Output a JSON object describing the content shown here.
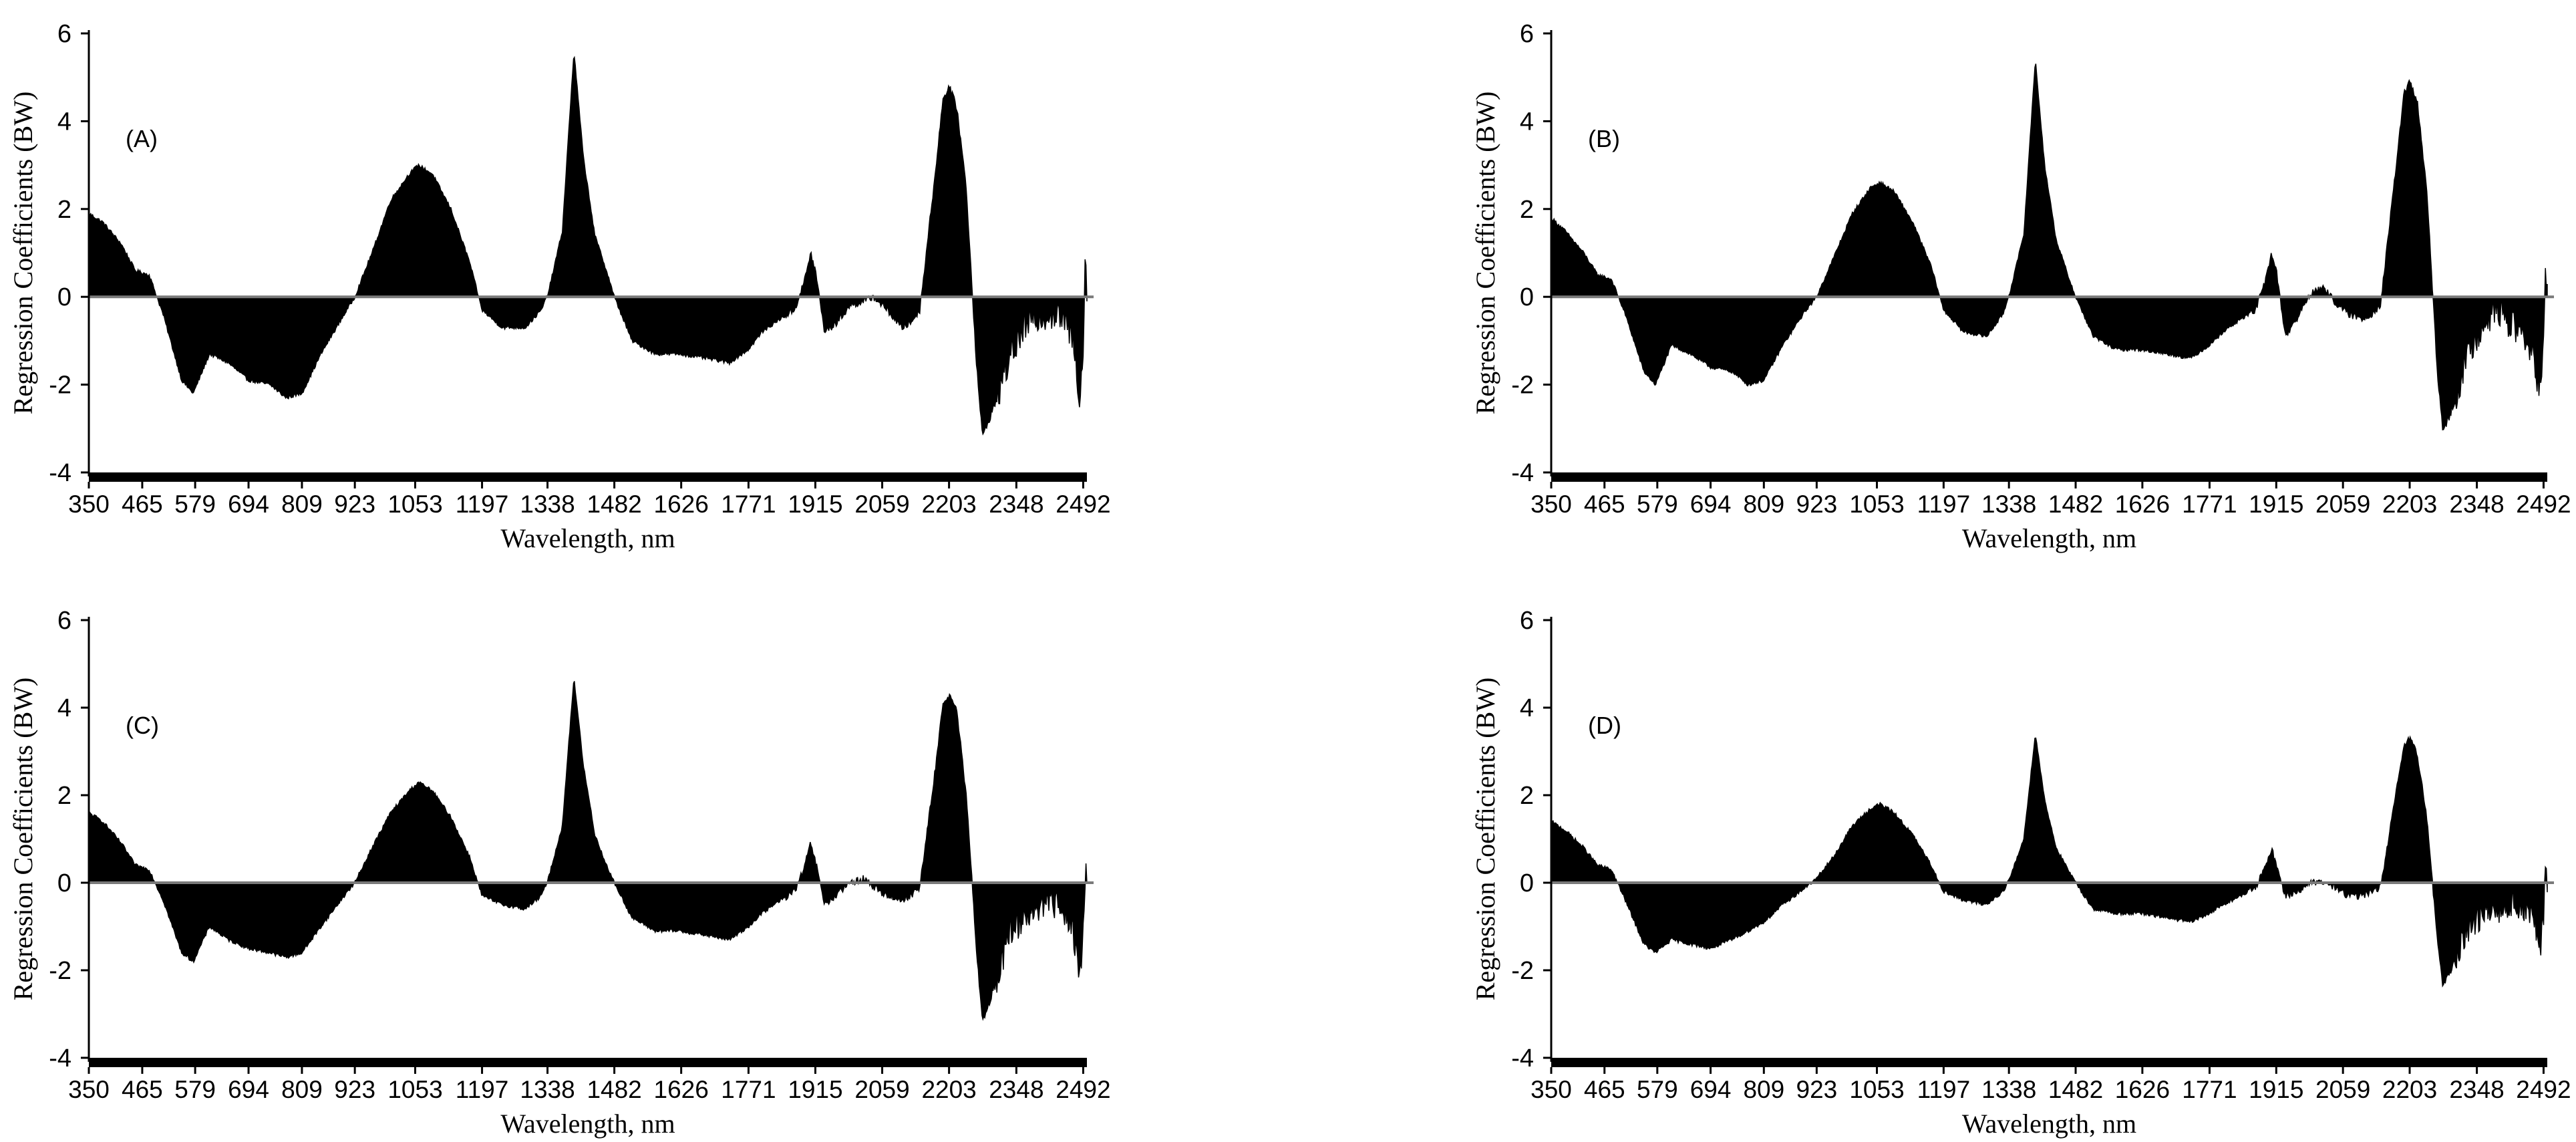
{
  "chart_data": [
    {
      "type": "area",
      "panel_label": "(A)",
      "xlabel": "Wavelength, nm",
      "ylabel": "Regression Coefficients (BW)",
      "ylim": [
        -4,
        6
      ],
      "yticks": [
        -4,
        -2,
        0,
        2,
        4,
        6
      ],
      "xlim": [
        350,
        2500
      ],
      "xticks": [
        350,
        465,
        579,
        694,
        809,
        923,
        1053,
        1197,
        1338,
        1482,
        1626,
        1771,
        1915,
        2059,
        2203,
        2348,
        2492
      ],
      "grid": false,
      "x": [
        350,
        380,
        420,
        450,
        480,
        510,
        550,
        575,
        610,
        650,
        694,
        740,
        775,
        809,
        850,
        900,
        923,
        960,
        1000,
        1040,
        1060,
        1090,
        1130,
        1170,
        1197,
        1240,
        1290,
        1325,
        1340,
        1370,
        1395,
        1415,
        1440,
        1465,
        1482,
        1520,
        1570,
        1620,
        1680,
        1730,
        1771,
        1800,
        1840,
        1870,
        1890,
        1905,
        1915,
        1935,
        1960,
        1990,
        2020,
        2040,
        2070,
        2100,
        2120,
        2140,
        2170,
        2190,
        2203,
        2220,
        2240,
        2262,
        2275,
        2300,
        2330,
        2360,
        2390,
        2420,
        2450,
        2470,
        2485,
        2492,
        2496,
        2500
      ],
      "values": [
        1.9,
        1.7,
        1.2,
        0.6,
        0.5,
        -0.4,
        -1.9,
        -2.2,
        -1.3,
        -1.5,
        -1.9,
        -2.0,
        -2.3,
        -2.2,
        -1.3,
        -0.4,
        0.0,
        1.0,
        2.2,
        2.8,
        3.0,
        2.8,
        2.0,
        0.8,
        -0.3,
        -0.7,
        -0.7,
        -0.3,
        0.1,
        1.5,
        5.6,
        3.2,
        1.4,
        0.6,
        0.0,
        -1.0,
        -1.3,
        -1.3,
        -1.4,
        -1.5,
        -1.2,
        -0.8,
        -0.5,
        -0.3,
        0.3,
        1.0,
        0.6,
        -0.8,
        -0.6,
        -0.2,
        -0.1,
        0.0,
        -0.3,
        -0.7,
        -0.6,
        -0.3,
        2.5,
        4.5,
        4.8,
        4.3,
        2.5,
        -1.5,
        -3.2,
        -2.5,
        -1.5,
        -0.8,
        -0.5,
        -0.4,
        -0.5,
        -1.0,
        -2.3,
        -1.2,
        0.9,
        0.2
      ]
    },
    {
      "type": "area",
      "panel_label": "(B)",
      "xlabel": "Wavelength, nm",
      "ylabel": "Regression Coefficients (BW)",
      "ylim": [
        -4,
        6
      ],
      "yticks": [
        -4,
        -2,
        0,
        2,
        4,
        6
      ],
      "xlim": [
        350,
        2500
      ],
      "xticks": [
        350,
        465,
        579,
        694,
        809,
        923,
        1053,
        1197,
        1338,
        1482,
        1626,
        1771,
        1915,
        2059,
        2203,
        2348,
        2492
      ],
      "grid": false,
      "x": [
        350,
        380,
        420,
        450,
        480,
        510,
        550,
        575,
        610,
        650,
        694,
        740,
        775,
        809,
        850,
        900,
        923,
        960,
        1000,
        1040,
        1060,
        1090,
        1130,
        1170,
        1197,
        1240,
        1290,
        1325,
        1340,
        1370,
        1395,
        1415,
        1440,
        1465,
        1482,
        1520,
        1570,
        1620,
        1680,
        1730,
        1771,
        1800,
        1840,
        1870,
        1890,
        1905,
        1915,
        1935,
        1960,
        1990,
        2020,
        2040,
        2070,
        2100,
        2120,
        2140,
        2170,
        2190,
        2203,
        2220,
        2240,
        2262,
        2275,
        2300,
        2330,
        2360,
        2390,
        2420,
        2450,
        2470,
        2485,
        2492,
        2496,
        2500
      ],
      "values": [
        1.8,
        1.5,
        1.0,
        0.5,
        0.4,
        -0.4,
        -1.7,
        -2.0,
        -1.1,
        -1.3,
        -1.6,
        -1.7,
        -2.0,
        -1.9,
        -1.1,
        -0.3,
        0.0,
        0.9,
        1.9,
        2.5,
        2.6,
        2.4,
        1.7,
        0.7,
        -0.3,
        -0.8,
        -0.9,
        -0.4,
        0.1,
        1.4,
        5.4,
        3.0,
        1.3,
        0.5,
        0.0,
        -0.9,
        -1.2,
        -1.2,
        -1.3,
        -1.4,
        -1.1,
        -0.8,
        -0.5,
        -0.3,
        0.3,
        1.0,
        0.6,
        -0.9,
        -0.5,
        0.1,
        0.2,
        -0.1,
        -0.4,
        -0.5,
        -0.4,
        -0.2,
        2.6,
        4.6,
        4.9,
        4.4,
        2.4,
        -1.6,
        -3.1,
        -2.4,
        -1.3,
        -0.6,
        -0.3,
        -0.6,
        -0.9,
        -1.4,
        -2.2,
        -1.2,
        0.5,
        0.1
      ]
    },
    {
      "type": "area",
      "panel_label": "(C)",
      "xlabel": "Wavelength, nm",
      "ylabel": "Regression Coefficients (BW)",
      "ylim": [
        -4,
        6
      ],
      "yticks": [
        -4,
        -2,
        0,
        2,
        4,
        6
      ],
      "xlim": [
        350,
        2500
      ],
      "xticks": [
        350,
        465,
        579,
        694,
        809,
        923,
        1053,
        1197,
        1338,
        1482,
        1626,
        1771,
        1915,
        2059,
        2203,
        2348,
        2492
      ],
      "grid": false,
      "x": [
        350,
        380,
        420,
        450,
        480,
        510,
        550,
        575,
        610,
        650,
        694,
        740,
        775,
        809,
        850,
        900,
        923,
        960,
        1000,
        1040,
        1060,
        1090,
        1130,
        1170,
        1197,
        1240,
        1290,
        1325,
        1340,
        1370,
        1395,
        1415,
        1440,
        1465,
        1482,
        1520,
        1570,
        1620,
        1680,
        1730,
        1771,
        1800,
        1840,
        1870,
        1890,
        1905,
        1915,
        1935,
        1960,
        1990,
        2020,
        2040,
        2070,
        2100,
        2120,
        2140,
        2170,
        2190,
        2203,
        2220,
        2240,
        2262,
        2275,
        2300,
        2330,
        2360,
        2390,
        2420,
        2450,
        2470,
        2485,
        2492,
        2496,
        2500
      ],
      "values": [
        1.6,
        1.4,
        0.9,
        0.4,
        0.3,
        -0.4,
        -1.6,
        -1.8,
        -1.0,
        -1.3,
        -1.5,
        -1.6,
        -1.7,
        -1.6,
        -1.0,
        -0.3,
        0.0,
        0.8,
        1.6,
        2.1,
        2.3,
        2.1,
        1.5,
        0.6,
        -0.3,
        -0.5,
        -0.6,
        -0.3,
        0.1,
        1.3,
        4.7,
        2.7,
        1.1,
        0.4,
        0.0,
        -0.8,
        -1.1,
        -1.1,
        -1.2,
        -1.3,
        -1.0,
        -0.7,
        -0.4,
        -0.2,
        0.3,
        0.9,
        0.5,
        -0.5,
        -0.3,
        0.0,
        0.1,
        -0.1,
        -0.3,
        -0.4,
        -0.3,
        -0.1,
        2.3,
        4.1,
        4.3,
        3.9,
        2.0,
        -1.5,
        -3.2,
        -2.4,
        -1.3,
        -0.8,
        -0.6,
        -0.4,
        -0.6,
        -1.0,
        -2.3,
        -1.0,
        0.2,
        0.0
      ]
    },
    {
      "type": "area",
      "panel_label": "(D)",
      "xlabel": "Wavelength, nm",
      "ylabel": "Regression Coefficients (BW)",
      "ylim": [
        -4,
        6
      ],
      "yticks": [
        -4,
        -2,
        0,
        2,
        4,
        6
      ],
      "xlim": [
        350,
        2500
      ],
      "xticks": [
        350,
        465,
        579,
        694,
        809,
        923,
        1053,
        1197,
        1338,
        1482,
        1626,
        1771,
        1915,
        2059,
        2203,
        2348,
        2492
      ],
      "grid": false,
      "x": [
        350,
        380,
        420,
        450,
        480,
        510,
        550,
        575,
        610,
        650,
        694,
        740,
        775,
        809,
        850,
        900,
        923,
        960,
        1000,
        1040,
        1060,
        1090,
        1130,
        1170,
        1197,
        1240,
        1290,
        1325,
        1340,
        1370,
        1395,
        1415,
        1440,
        1465,
        1482,
        1520,
        1570,
        1620,
        1680,
        1730,
        1771,
        1800,
        1840,
        1870,
        1890,
        1905,
        1915,
        1935,
        1960,
        1990,
        2020,
        2040,
        2070,
        2100,
        2120,
        2140,
        2170,
        2190,
        2203,
        2220,
        2240,
        2262,
        2275,
        2300,
        2330,
        2360,
        2390,
        2420,
        2450,
        2470,
        2485,
        2492,
        2496,
        2500
      ],
      "values": [
        1.4,
        1.2,
        0.8,
        0.4,
        0.3,
        -0.4,
        -1.4,
        -1.6,
        -1.3,
        -1.4,
        -1.5,
        -1.3,
        -1.1,
        -0.9,
        -0.5,
        -0.1,
        0.1,
        0.6,
        1.3,
        1.7,
        1.8,
        1.6,
        1.1,
        0.4,
        -0.2,
        -0.4,
        -0.5,
        -0.2,
        0.1,
        1.0,
        3.4,
        1.9,
        0.8,
        0.3,
        0.0,
        -0.6,
        -0.7,
        -0.7,
        -0.8,
        -0.9,
        -0.7,
        -0.5,
        -0.3,
        -0.1,
        0.3,
        0.8,
        0.4,
        -0.3,
        -0.2,
        0.0,
        0.0,
        -0.1,
        -0.3,
        -0.3,
        -0.2,
        -0.1,
        1.8,
        3.1,
        3.3,
        2.9,
        1.5,
        -1.2,
        -2.4,
        -1.8,
        -1.0,
        -0.7,
        -0.6,
        -0.5,
        -0.6,
        -0.8,
        -1.6,
        -0.8,
        0.5,
        0.0
      ]
    }
  ]
}
